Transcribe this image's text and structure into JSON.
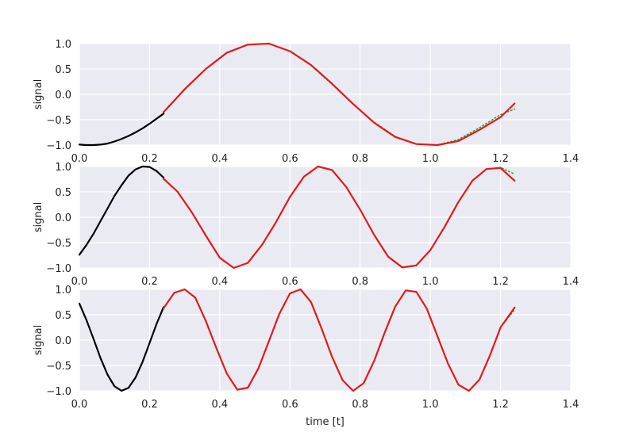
{
  "chart_data": [
    {
      "type": "line",
      "xlabel": "",
      "ylabel": "signal",
      "xlim": [
        0.0,
        1.4
      ],
      "ylim": [
        -1.0,
        1.0
      ],
      "xticks": [
        "0.0",
        "0.2",
        "0.4",
        "0.6",
        "0.8",
        "1.0",
        "1.2",
        "1.4"
      ],
      "yticks": [
        "−1.0",
        "−0.5",
        "0.0",
        "0.5",
        "1.0"
      ],
      "grid": true,
      "series": [
        {
          "color": "#000000",
          "style": "solid",
          "x": [
            0.0,
            0.02,
            0.04,
            0.06,
            0.08,
            0.1,
            0.12,
            0.14,
            0.16,
            0.18,
            0.2,
            0.22,
            0.24
          ],
          "y": [
            -0.99,
            -1.0,
            -1.0,
            -0.99,
            -0.97,
            -0.93,
            -0.88,
            -0.82,
            -0.75,
            -0.67,
            -0.58,
            -0.48,
            -0.38
          ]
        },
        {
          "color": "#2ca02c",
          "style": "dotted",
          "x": [
            0.24,
            0.3,
            0.36,
            0.42,
            0.48,
            0.54,
            0.6,
            0.66,
            0.72,
            0.78,
            0.84,
            0.9,
            0.96,
            1.02,
            1.08,
            1.14,
            1.2,
            1.24
          ],
          "y": [
            -0.36,
            0.09,
            0.5,
            0.81,
            0.98,
            1.0,
            0.85,
            0.57,
            0.2,
            -0.19,
            -0.55,
            -0.83,
            -0.98,
            -1.0,
            -0.89,
            -0.66,
            -0.4,
            -0.29
          ]
        },
        {
          "color": "#e31a1c",
          "style": "solid",
          "x": [
            0.24,
            0.3,
            0.36,
            0.42,
            0.48,
            0.54,
            0.6,
            0.66,
            0.72,
            0.78,
            0.84,
            0.9,
            0.96,
            1.02,
            1.08,
            1.14,
            1.2,
            1.24
          ],
          "y": [
            -0.35,
            0.1,
            0.5,
            0.82,
            0.98,
            1.0,
            0.85,
            0.58,
            0.21,
            -0.19,
            -0.56,
            -0.84,
            -0.98,
            -1.0,
            -0.92,
            -0.7,
            -0.45,
            -0.18
          ]
        }
      ]
    },
    {
      "type": "line",
      "xlabel": "",
      "ylabel": "signal",
      "xlim": [
        0.0,
        1.4
      ],
      "ylim": [
        -1.0,
        1.0
      ],
      "xticks": [
        "0.0",
        "0.2",
        "0.4",
        "0.6",
        "0.8",
        "1.0",
        "1.2",
        "1.4"
      ],
      "yticks": [
        "−1.0",
        "−0.5",
        "0.0",
        "0.5",
        "1.0"
      ],
      "grid": true,
      "series": [
        {
          "color": "#000000",
          "style": "solid",
          "x": [
            0.0,
            0.02,
            0.04,
            0.06,
            0.08,
            0.1,
            0.12,
            0.14,
            0.16,
            0.18,
            0.2,
            0.22,
            0.24
          ],
          "y": [
            -0.74,
            -0.55,
            -0.33,
            -0.08,
            0.17,
            0.42,
            0.63,
            0.82,
            0.94,
            1.0,
            0.99,
            0.91,
            0.78
          ]
        },
        {
          "color": "#2ca02c",
          "style": "dotted",
          "x": [
            0.24,
            0.28,
            0.32,
            0.36,
            0.4,
            0.44,
            0.48,
            0.52,
            0.56,
            0.6,
            0.64,
            0.68,
            0.72,
            0.76,
            0.8,
            0.84,
            0.88,
            0.92,
            0.96,
            1.0,
            1.04,
            1.08,
            1.12,
            1.16,
            1.2,
            1.24
          ],
          "y": [
            0.75,
            0.5,
            0.1,
            -0.35,
            -0.8,
            -1.0,
            -0.9,
            -0.55,
            -0.1,
            0.4,
            0.8,
            1.0,
            0.93,
            0.6,
            0.15,
            -0.35,
            -0.77,
            -0.98,
            -0.95,
            -0.65,
            -0.2,
            0.3,
            0.72,
            0.95,
            0.98,
            0.85
          ]
        },
        {
          "color": "#e31a1c",
          "style": "solid",
          "x": [
            0.24,
            0.28,
            0.32,
            0.36,
            0.4,
            0.44,
            0.48,
            0.52,
            0.56,
            0.6,
            0.64,
            0.68,
            0.72,
            0.76,
            0.8,
            0.84,
            0.88,
            0.92,
            0.96,
            1.0,
            1.04,
            1.08,
            1.12,
            1.16,
            1.2,
            1.24
          ],
          "y": [
            0.76,
            0.5,
            0.1,
            -0.36,
            -0.8,
            -1.0,
            -0.9,
            -0.55,
            -0.1,
            0.4,
            0.8,
            1.0,
            0.93,
            0.6,
            0.15,
            -0.35,
            -0.78,
            -0.99,
            -0.95,
            -0.65,
            -0.2,
            0.3,
            0.72,
            0.95,
            0.97,
            0.72
          ]
        }
      ]
    },
    {
      "type": "line",
      "xlabel": "time [t]",
      "ylabel": "signal",
      "xlim": [
        0.0,
        1.4
      ],
      "ylim": [
        -1.0,
        1.0
      ],
      "xticks": [
        "0.0",
        "0.2",
        "0.4",
        "0.6",
        "0.8",
        "1.0",
        "1.2",
        "1.4"
      ],
      "yticks": [
        "−1.0",
        "−0.5",
        "0.0",
        "0.5",
        "1.0"
      ],
      "grid": true,
      "series": [
        {
          "color": "#000000",
          "style": "solid",
          "x": [
            0.0,
            0.02,
            0.04,
            0.06,
            0.08,
            0.1,
            0.12,
            0.14,
            0.16,
            0.18,
            0.2,
            0.22,
            0.24
          ],
          "y": [
            0.72,
            0.4,
            0.03,
            -0.35,
            -0.68,
            -0.91,
            -1.0,
            -0.94,
            -0.74,
            -0.43,
            -0.06,
            0.32,
            0.65
          ]
        },
        {
          "color": "#2ca02c",
          "style": "dotted",
          "x": [
            0.24,
            0.27,
            0.3,
            0.33,
            0.36,
            0.39,
            0.42,
            0.45,
            0.48,
            0.51,
            0.54,
            0.57,
            0.6,
            0.63,
            0.66,
            0.69,
            0.72,
            0.75,
            0.78,
            0.81,
            0.84,
            0.87,
            0.9,
            0.93,
            0.96,
            0.99,
            1.02,
            1.05,
            1.08,
            1.11,
            1.14,
            1.17,
            1.2,
            1.24
          ],
          "y": [
            0.62,
            0.93,
            1.0,
            0.83,
            0.38,
            -0.15,
            -0.66,
            -0.97,
            -0.93,
            -0.56,
            -0.02,
            0.52,
            0.92,
            1.0,
            0.75,
            0.23,
            -0.33,
            -0.79,
            -1.0,
            -0.85,
            -0.41,
            0.15,
            0.66,
            0.98,
            0.95,
            0.62,
            0.08,
            -0.46,
            -0.88,
            -1.0,
            -0.78,
            -0.3,
            0.25,
            0.6
          ]
        },
        {
          "color": "#e31a1c",
          "style": "solid",
          "x": [
            0.24,
            0.27,
            0.3,
            0.33,
            0.36,
            0.39,
            0.42,
            0.45,
            0.48,
            0.51,
            0.54,
            0.57,
            0.6,
            0.63,
            0.66,
            0.69,
            0.72,
            0.75,
            0.78,
            0.81,
            0.84,
            0.87,
            0.9,
            0.93,
            0.96,
            0.99,
            1.02,
            1.05,
            1.08,
            1.11,
            1.14,
            1.17,
            1.2,
            1.24
          ],
          "y": [
            0.63,
            0.93,
            1.0,
            0.84,
            0.38,
            -0.15,
            -0.66,
            -0.98,
            -0.94,
            -0.56,
            -0.02,
            0.52,
            0.92,
            1.0,
            0.75,
            0.23,
            -0.33,
            -0.79,
            -1.0,
            -0.85,
            -0.41,
            0.15,
            0.66,
            0.98,
            0.95,
            0.62,
            0.08,
            -0.46,
            -0.88,
            -1.0,
            -0.78,
            -0.3,
            0.25,
            0.64
          ]
        }
      ]
    }
  ]
}
